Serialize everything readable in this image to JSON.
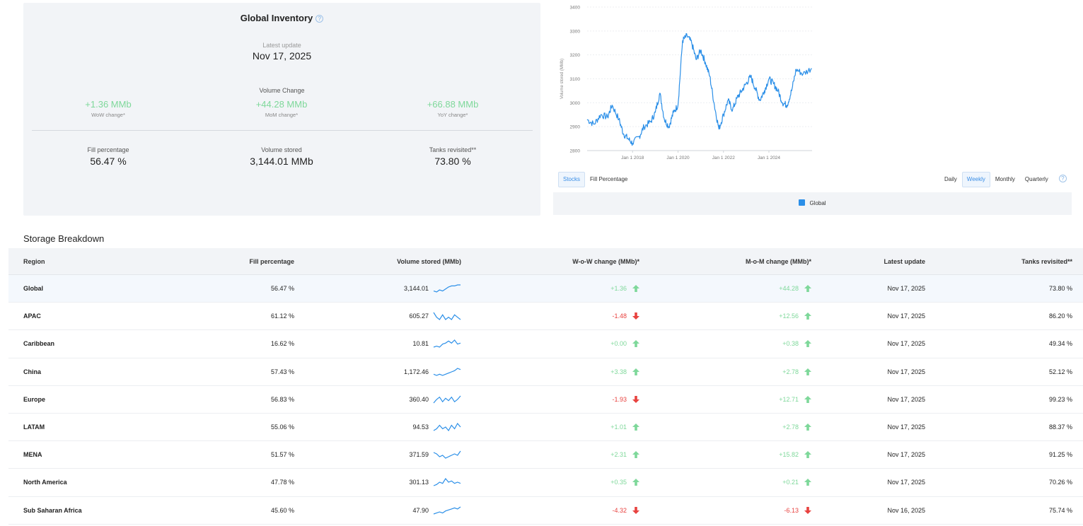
{
  "inventory": {
    "title": "Global Inventory",
    "help_icon": "?",
    "latest_update_label": "Latest update",
    "latest_update_value": "Nov 17, 2025",
    "volume_change_label": "Volume Change",
    "wow": {
      "value": "+1.36 MMb",
      "label": "WoW change*"
    },
    "mom": {
      "value": "+44.28 MMb",
      "label": "MoM change*"
    },
    "yoy": {
      "value": "+66.88 MMb",
      "label": "YoY change*"
    },
    "fill": {
      "label": "Fill percentage",
      "value": "56.47 %"
    },
    "volume": {
      "label": "Volume stored",
      "value": "3,144.01 MMb"
    },
    "tanks": {
      "label": "Tanks revisited**",
      "value": "73.80 %"
    }
  },
  "chart_data": {
    "type": "line",
    "title": "",
    "ylabel": "Volume stored (MMb)",
    "xlabel": "",
    "ylim": [
      2800,
      3400
    ],
    "y_ticks": [
      "3400",
      "3300",
      "3200",
      "3100",
      "3000",
      "2900",
      "2800"
    ],
    "x_ticks": [
      "Jan 1 2018",
      "Jan 1 2020",
      "Jan 1 2022",
      "Jan 1 2024"
    ],
    "series": [
      {
        "name": "Global",
        "color": "#2b8fe8",
        "x": [
          2016.0,
          2016.3,
          2016.6,
          2016.9,
          2017.1,
          2017.4,
          2017.6,
          2017.8,
          2018.0,
          2018.3,
          2018.5,
          2018.8,
          2019.0,
          2019.2,
          2019.4,
          2019.6,
          2019.8,
          2020.0,
          2020.2,
          2020.4,
          2020.6,
          2020.8,
          2021.0,
          2021.2,
          2021.4,
          2021.6,
          2021.8,
          2022.0,
          2022.2,
          2022.4,
          2022.6,
          2022.8,
          2023.0,
          2023.2,
          2023.4,
          2023.6,
          2023.8,
          2024.0,
          2024.2,
          2024.4,
          2024.6,
          2024.8,
          2025.0,
          2025.2,
          2025.5,
          2025.88
        ],
        "values": [
          2930,
          2910,
          2950,
          2940,
          2990,
          2930,
          2870,
          2850,
          2830,
          2860,
          2900,
          2920,
          2960,
          3040,
          2930,
          2900,
          2960,
          2990,
          3260,
          3280,
          3250,
          3180,
          3220,
          3170,
          3110,
          2990,
          2890,
          2950,
          3010,
          2970,
          3020,
          3050,
          3080,
          3110,
          3060,
          3010,
          3050,
          3100,
          3080,
          3050,
          3000,
          2990,
          3050,
          3140,
          3120,
          3144
        ]
      }
    ],
    "legend": [
      "Global"
    ]
  },
  "chart_controls": {
    "mode_tabs": [
      "Stocks",
      "Fill Percentage"
    ],
    "active_mode": "Stocks",
    "period_tabs": [
      "Daily",
      "Weekly",
      "Monthly",
      "Quarterly"
    ],
    "active_period": "Weekly"
  },
  "breakdown": {
    "title": "Storage Breakdown",
    "columns": [
      "Region",
      "Fill percentage",
      "Volume stored (MMb)",
      "W-o-W change (MMb)*",
      "M-o-M change (MMb)*",
      "Latest update",
      "Tanks revisited**"
    ],
    "rows": [
      {
        "region": "Global",
        "fill": "56.47 %",
        "volume": "3,144.01",
        "wow": "+1.36",
        "wow_dir": "up",
        "mom": "+44.28",
        "mom_dir": "up",
        "latest": "Nov 17, 2025",
        "tanks": "73.80 %",
        "spark": [
          3,
          2,
          4,
          3,
          5,
          7,
          8,
          8,
          9,
          9
        ]
      },
      {
        "region": "APAC",
        "fill": "61.12 %",
        "volume": "605.27",
        "wow": "-1.48",
        "wow_dir": "down",
        "mom": "+12.56",
        "mom_dir": "up",
        "latest": "Nov 17, 2025",
        "tanks": "86.20 %",
        "spark": [
          9,
          7,
          6,
          8,
          6,
          7,
          6,
          8,
          7,
          6
        ]
      },
      {
        "region": "Caribbean",
        "fill": "16.62 %",
        "volume": "10.81",
        "wow": "+0.00",
        "wow_dir": "up",
        "mom": "+0.38",
        "mom_dir": "up",
        "latest": "Nov 17, 2025",
        "tanks": "49.34 %",
        "spark": [
          2,
          3,
          2,
          5,
          6,
          8,
          6,
          9,
          5,
          6
        ]
      },
      {
        "region": "China",
        "fill": "57.43 %",
        "volume": "1,172.46",
        "wow": "+3.38",
        "wow_dir": "up",
        "mom": "+2.78",
        "mom_dir": "up",
        "latest": "Nov 17, 2025",
        "tanks": "52.12 %",
        "spark": [
          3,
          2,
          3,
          2,
          3,
          4,
          5,
          6,
          8,
          7
        ]
      },
      {
        "region": "Europe",
        "fill": "56.83 %",
        "volume": "360.40",
        "wow": "-1.93",
        "wow_dir": "down",
        "mom": "+12.71",
        "mom_dir": "up",
        "latest": "Nov 17, 2025",
        "tanks": "99.23 %",
        "spark": [
          3,
          6,
          8,
          4,
          7,
          5,
          8,
          4,
          6,
          9
        ]
      },
      {
        "region": "LATAM",
        "fill": "55.06 %",
        "volume": "94.53",
        "wow": "+1.01",
        "wow_dir": "up",
        "mom": "+2.78",
        "mom_dir": "up",
        "latest": "Nov 17, 2025",
        "tanks": "88.37 %",
        "spark": [
          4,
          5,
          7,
          5,
          6,
          4,
          7,
          5,
          8,
          6
        ]
      },
      {
        "region": "MENA",
        "fill": "51.57 %",
        "volume": "371.59",
        "wow": "+2.31",
        "wow_dir": "up",
        "mom": "+15.82",
        "mom_dir": "up",
        "latest": "Nov 17, 2025",
        "tanks": "91.25 %",
        "spark": [
          8,
          7,
          5,
          6,
          4,
          5,
          6,
          7,
          6,
          9
        ]
      },
      {
        "region": "North America",
        "fill": "47.78 %",
        "volume": "301.13",
        "wow": "+0.35",
        "wow_dir": "up",
        "mom": "+0.21",
        "mom_dir": "up",
        "latest": "Nov 17, 2025",
        "tanks": "70.26 %",
        "spark": [
          3,
          4,
          6,
          5,
          9,
          6,
          7,
          5,
          6,
          5
        ]
      },
      {
        "region": "Sub Saharan Africa",
        "fill": "45.60 %",
        "volume": "47.90",
        "wow": "-4.32",
        "wow_dir": "down",
        "mom": "-6.13",
        "mom_dir": "down",
        "latest": "Nov 16, 2025",
        "tanks": "75.74 %",
        "spark": [
          2,
          3,
          4,
          3,
          5,
          6,
          7,
          8,
          7,
          9
        ]
      }
    ]
  },
  "colors": {
    "positive": "#7ed89a",
    "negative": "#e8423f",
    "accent": "#2b8fe8"
  }
}
